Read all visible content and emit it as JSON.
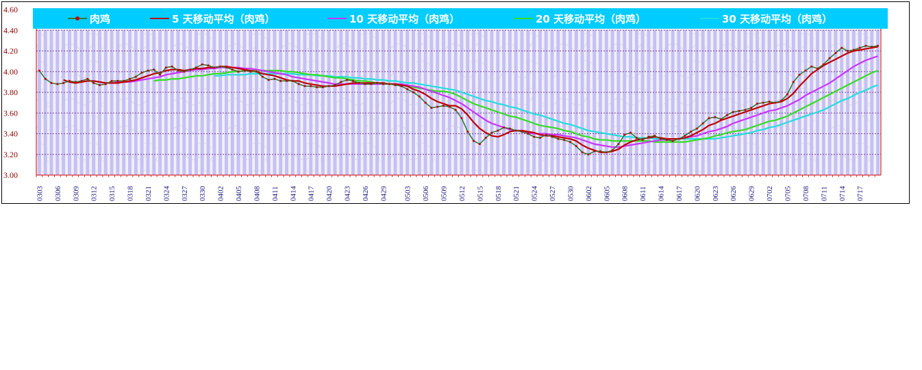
{
  "chart_data": {
    "type": "line",
    "title": "",
    "xlabel": "",
    "ylabel": "",
    "ylim": [
      3.0,
      4.6
    ],
    "yticks": [
      "3.00",
      "3.20",
      "3.40",
      "3.60",
      "3.80",
      "4.00",
      "4.20",
      "4.40",
      "4.60"
    ],
    "grid": true,
    "legend_position": "top",
    "x": [
      "0303",
      "0304",
      "0305",
      "0306",
      "0307",
      "0308",
      "0309",
      "0310",
      "0311",
      "0312",
      "0313",
      "0314",
      "0315",
      "0316",
      "0317",
      "0318",
      "0319",
      "0320",
      "0321",
      "0322",
      "0323",
      "0324",
      "0325",
      "0326",
      "0327",
      "0328",
      "0329",
      "0330",
      "0331",
      "0401",
      "0402",
      "0403",
      "0404",
      "0405",
      "0406",
      "0407",
      "0408",
      "0409",
      "0410",
      "0411",
      "0412",
      "0413",
      "0414",
      "0415",
      "0416",
      "0417",
      "0418",
      "0419",
      "0420",
      "0421",
      "0422",
      "0423",
      "0424",
      "0425",
      "0426",
      "0427",
      "0428",
      "0429",
      "0430",
      "0501",
      "0502",
      "0503",
      "0504",
      "0505",
      "0506",
      "0507",
      "0508",
      "0509",
      "0510",
      "0511",
      "0512",
      "0513",
      "0514",
      "0515",
      "0516",
      "0517",
      "0518",
      "0519",
      "0520",
      "0521",
      "0522",
      "0523",
      "0524",
      "0525",
      "0526",
      "0527",
      "0528",
      "0529",
      "0530",
      "0531",
      "0601",
      "0602",
      "0603",
      "0604",
      "0605",
      "0606",
      "0607",
      "0608",
      "0609",
      "0610",
      "0611",
      "0612",
      "0613",
      "0614",
      "0615",
      "0616",
      "0617",
      "0618",
      "0619",
      "0620",
      "0621",
      "0622",
      "0623",
      "0624",
      "0625",
      "0626",
      "0627",
      "0628",
      "0629",
      "0630",
      "0701",
      "0702",
      "0703",
      "0704",
      "0705",
      "0706",
      "0707",
      "0708",
      "0709",
      "0710",
      "0711",
      "0712",
      "0713",
      "0714",
      "0715",
      "0716",
      "0717",
      "0718",
      "0719",
      "0720"
    ],
    "xtick_labels": [
      "0303",
      "0306",
      "0309",
      "0312",
      "0315",
      "0318",
      "0321",
      "0324",
      "0327",
      "0330",
      "0402",
      "0405",
      "0408",
      "0411",
      "0414",
      "0417",
      "0420",
      "0423",
      "0426",
      "0429",
      "0503",
      "0506",
      "0509",
      "0512",
      "0515",
      "0518",
      "0521",
      "0524",
      "0527",
      "0530",
      "0602",
      "0605",
      "0608",
      "0611",
      "0614",
      "0617",
      "0620",
      "0623",
      "0626",
      "0629",
      "0702",
      "0705",
      "0708",
      "0711",
      "0714",
      "0717"
    ],
    "series": [
      {
        "name": "肉鸡",
        "color": "#2e7d32",
        "values": [
          4.01,
          3.93,
          3.89,
          3.88,
          3.89,
          3.91,
          3.9,
          3.91,
          3.93,
          3.89,
          3.87,
          3.88,
          3.91,
          3.91,
          3.91,
          3.93,
          3.95,
          3.99,
          4.01,
          4.02,
          3.97,
          4.04,
          4.05,
          4.01,
          4.0,
          4.02,
          4.04,
          4.07,
          4.06,
          4.04,
          4.05,
          4.04,
          4.02,
          4.0,
          4.01,
          4.0,
          4.0,
          3.95,
          3.92,
          3.93,
          3.91,
          3.91,
          3.91,
          3.88,
          3.86,
          3.86,
          3.85,
          3.85,
          3.86,
          3.87,
          3.9,
          3.92,
          3.91,
          3.89,
          3.88,
          3.88,
          3.89,
          3.88,
          3.88,
          3.87,
          3.86,
          3.83,
          3.8,
          3.76,
          3.7,
          3.65,
          3.66,
          3.67,
          3.66,
          3.63,
          3.55,
          3.42,
          3.33,
          3.3,
          3.36,
          3.41,
          3.43,
          3.46,
          3.45,
          3.43,
          3.42,
          3.4,
          3.37,
          3.36,
          3.39,
          3.37,
          3.35,
          3.34,
          3.32,
          3.28,
          3.22,
          3.2,
          3.23,
          3.23,
          3.22,
          3.24,
          3.3,
          3.39,
          3.41,
          3.36,
          3.34,
          3.37,
          3.38,
          3.35,
          3.34,
          3.33,
          3.35,
          3.38,
          3.42,
          3.45,
          3.5,
          3.55,
          3.56,
          3.54,
          3.58,
          3.61,
          3.62,
          3.63,
          3.65,
          3.69,
          3.7,
          3.71,
          3.7,
          3.72,
          3.78,
          3.9,
          3.97,
          4.01,
          4.05,
          4.03,
          4.07,
          4.13,
          4.18,
          4.23,
          4.2,
          4.21,
          4.23,
          4.25,
          4.24,
          4.25
        ]
      },
      {
        "name": "5 天移动平均（肉鸡）",
        "color": "#c00000",
        "values": [
          null,
          null,
          null,
          null,
          3.92,
          3.9,
          3.89,
          3.9,
          3.91,
          3.91,
          3.9,
          3.89,
          3.89,
          3.89,
          3.9,
          3.91,
          3.92,
          3.94,
          3.96,
          3.98,
          3.99,
          4.01,
          4.02,
          4.02,
          4.01,
          4.02,
          4.03,
          4.03,
          4.04,
          4.04,
          4.05,
          4.05,
          4.04,
          4.03,
          4.02,
          4.01,
          4.0,
          3.98,
          3.97,
          3.96,
          3.94,
          3.92,
          3.91,
          3.91,
          3.89,
          3.88,
          3.87,
          3.86,
          3.86,
          3.86,
          3.87,
          3.88,
          3.89,
          3.89,
          3.89,
          3.89,
          3.89,
          3.89,
          3.88,
          3.88,
          3.87,
          3.86,
          3.83,
          3.81,
          3.78,
          3.74,
          3.71,
          3.69,
          3.67,
          3.67,
          3.64,
          3.58,
          3.51,
          3.45,
          3.41,
          3.38,
          3.37,
          3.39,
          3.42,
          3.43,
          3.43,
          3.42,
          3.41,
          3.39,
          3.38,
          3.38,
          3.37,
          3.36,
          3.35,
          3.33,
          3.29,
          3.26,
          3.24,
          3.22,
          3.22,
          3.23,
          3.25,
          3.29,
          3.32,
          3.34,
          3.35,
          3.36,
          3.37,
          3.36,
          3.35,
          3.35,
          3.35,
          3.36,
          3.38,
          3.41,
          3.44,
          3.48,
          3.5,
          3.53,
          3.55,
          3.57,
          3.59,
          3.61,
          3.63,
          3.65,
          3.67,
          3.69,
          3.7,
          3.71,
          3.74,
          3.79,
          3.86,
          3.92,
          3.98,
          4.02,
          4.06,
          4.09,
          4.12,
          4.15,
          4.18,
          4.2,
          4.21,
          4.22,
          4.23,
          4.24
        ]
      },
      {
        "name": "10 天移动平均（肉鸡）",
        "color": "#cc33ff",
        "values": [
          null,
          null,
          null,
          null,
          null,
          null,
          null,
          null,
          null,
          3.91,
          3.9,
          3.89,
          3.89,
          3.9,
          3.9,
          3.9,
          3.91,
          3.92,
          3.93,
          3.94,
          3.95,
          3.97,
          3.98,
          3.99,
          4.0,
          4.01,
          4.02,
          4.02,
          4.03,
          4.03,
          4.04,
          4.04,
          4.04,
          4.04,
          4.03,
          4.03,
          4.02,
          4.01,
          4.0,
          3.99,
          3.98,
          3.97,
          3.95,
          3.94,
          3.93,
          3.92,
          3.91,
          3.9,
          3.89,
          3.88,
          3.88,
          3.88,
          3.88,
          3.88,
          3.88,
          3.88,
          3.88,
          3.88,
          3.88,
          3.88,
          3.88,
          3.87,
          3.86,
          3.85,
          3.83,
          3.81,
          3.79,
          3.77,
          3.75,
          3.72,
          3.69,
          3.65,
          3.61,
          3.57,
          3.53,
          3.5,
          3.48,
          3.46,
          3.44,
          3.43,
          3.42,
          3.41,
          3.4,
          3.4,
          3.4,
          3.39,
          3.39,
          3.38,
          3.37,
          3.36,
          3.34,
          3.32,
          3.3,
          3.29,
          3.28,
          3.27,
          3.27,
          3.28,
          3.29,
          3.3,
          3.31,
          3.32,
          3.33,
          3.34,
          3.34,
          3.35,
          3.35,
          3.36,
          3.37,
          3.38,
          3.4,
          3.42,
          3.43,
          3.45,
          3.47,
          3.5,
          3.52,
          3.54,
          3.56,
          3.58,
          3.6,
          3.62,
          3.63,
          3.65,
          3.67,
          3.7,
          3.73,
          3.77,
          3.8,
          3.83,
          3.86,
          3.89,
          3.93,
          3.97,
          4.01,
          4.05,
          4.08,
          4.11,
          4.13,
          4.15
        ]
      },
      {
        "name": "20 天移动平均（肉鸡）",
        "color": "#33dd22",
        "values": [
          null,
          null,
          null,
          null,
          null,
          null,
          null,
          null,
          null,
          null,
          null,
          null,
          null,
          null,
          null,
          null,
          null,
          null,
          null,
          3.91,
          3.92,
          3.92,
          3.93,
          3.93,
          3.94,
          3.95,
          3.96,
          3.96,
          3.97,
          3.98,
          3.98,
          3.99,
          4.0,
          4.0,
          4.01,
          4.01,
          4.01,
          4.01,
          4.01,
          4.01,
          4.01,
          4.0,
          4.0,
          3.99,
          3.98,
          3.97,
          3.97,
          3.96,
          3.95,
          3.94,
          3.94,
          3.93,
          3.92,
          3.91,
          3.91,
          3.9,
          3.89,
          3.89,
          3.88,
          3.88,
          3.87,
          3.86,
          3.85,
          3.84,
          3.83,
          3.82,
          3.81,
          3.81,
          3.8,
          3.78,
          3.75,
          3.72,
          3.69,
          3.67,
          3.65,
          3.63,
          3.61,
          3.59,
          3.57,
          3.56,
          3.54,
          3.52,
          3.5,
          3.48,
          3.47,
          3.46,
          3.45,
          3.43,
          3.42,
          3.4,
          3.38,
          3.37,
          3.35,
          3.34,
          3.34,
          3.33,
          3.33,
          3.33,
          3.33,
          3.33,
          3.33,
          3.33,
          3.32,
          3.32,
          3.32,
          3.32,
          3.32,
          3.32,
          3.33,
          3.34,
          3.35,
          3.36,
          3.38,
          3.39,
          3.41,
          3.42,
          3.43,
          3.44,
          3.46,
          3.48,
          3.5,
          3.52,
          3.53,
          3.55,
          3.57,
          3.6,
          3.63,
          3.66,
          3.69,
          3.72,
          3.75,
          3.78,
          3.81,
          3.84,
          3.87,
          3.9,
          3.93,
          3.96,
          3.99,
          4.01
        ]
      },
      {
        "name": "30 天移动平均（肉鸡）",
        "color": "#22dddd",
        "values": [
          null,
          null,
          null,
          null,
          null,
          null,
          null,
          null,
          null,
          null,
          null,
          null,
          null,
          null,
          null,
          null,
          null,
          null,
          null,
          null,
          null,
          null,
          null,
          null,
          null,
          null,
          null,
          null,
          null,
          3.96,
          3.96,
          3.97,
          3.97,
          3.97,
          3.97,
          3.98,
          3.98,
          3.98,
          3.98,
          3.98,
          3.98,
          3.98,
          3.98,
          3.97,
          3.97,
          3.97,
          3.96,
          3.96,
          3.96,
          3.95,
          3.95,
          3.95,
          3.94,
          3.94,
          3.93,
          3.93,
          3.92,
          3.92,
          3.91,
          3.91,
          3.9,
          3.89,
          3.89,
          3.88,
          3.87,
          3.86,
          3.85,
          3.84,
          3.83,
          3.82,
          3.8,
          3.78,
          3.76,
          3.74,
          3.72,
          3.71,
          3.69,
          3.68,
          3.66,
          3.65,
          3.63,
          3.61,
          3.59,
          3.58,
          3.56,
          3.54,
          3.52,
          3.5,
          3.49,
          3.47,
          3.45,
          3.43,
          3.42,
          3.41,
          3.4,
          3.39,
          3.38,
          3.37,
          3.37,
          3.36,
          3.36,
          3.36,
          3.35,
          3.35,
          3.35,
          3.35,
          3.35,
          3.35,
          3.35,
          3.35,
          3.35,
          3.35,
          3.35,
          3.36,
          3.37,
          3.38,
          3.39,
          3.4,
          3.41,
          3.43,
          3.44,
          3.46,
          3.47,
          3.49,
          3.51,
          3.53,
          3.55,
          3.57,
          3.59,
          3.61,
          3.63,
          3.66,
          3.69,
          3.72,
          3.74,
          3.77,
          3.8,
          3.82,
          3.85,
          3.87
        ]
      }
    ]
  },
  "colors": {
    "legend_bg": "#00ccff",
    "plot_bg": "#f2efef",
    "bars": "#c4c0f8",
    "grid": "#7b3f9e",
    "axis": "#d00000"
  }
}
